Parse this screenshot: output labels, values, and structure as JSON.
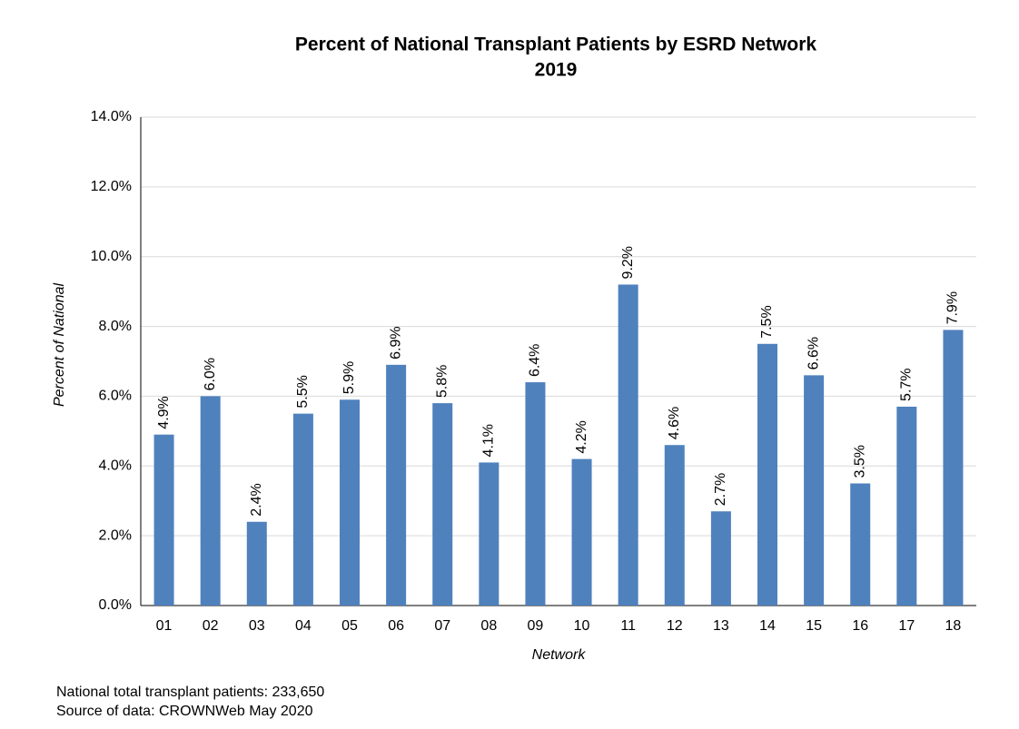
{
  "chart_data": {
    "type": "bar",
    "title": "Percent of National Transplant Patients by ESRD Network",
    "subtitle": "2019",
    "x_label": "Network",
    "y_label": "Percent of National",
    "categories": [
      "01",
      "02",
      "03",
      "04",
      "05",
      "06",
      "07",
      "08",
      "09",
      "10",
      "11",
      "12",
      "13",
      "14",
      "15",
      "16",
      "17",
      "18"
    ],
    "values": [
      4.9,
      6.0,
      2.4,
      5.5,
      5.9,
      6.9,
      5.8,
      4.1,
      6.4,
      4.2,
      9.2,
      4.6,
      2.7,
      7.5,
      6.6,
      3.5,
      5.7,
      7.9
    ],
    "value_labels": [
      "4.9%",
      "6.0%",
      "2.4%",
      "5.5%",
      "5.9%",
      "6.9%",
      "5.8%",
      "4.1%",
      "6.4%",
      "4.2%",
      "9.2%",
      "4.6%",
      "2.7%",
      "7.5%",
      "6.6%",
      "3.5%",
      "5.7%",
      "7.9%"
    ],
    "color": "#4f81bd",
    "ylim": [
      0,
      14
    ],
    "yticks": [
      {
        "value": 0,
        "label": "0.0%"
      },
      {
        "value": 2,
        "label": "2.0%"
      },
      {
        "value": 4,
        "label": "4.0%"
      },
      {
        "value": 6,
        "label": "6.0%"
      },
      {
        "value": 8,
        "label": "8.0%"
      },
      {
        "value": 10,
        "label": "10.0%"
      },
      {
        "value": 12,
        "label": "12.0%"
      },
      {
        "value": 14,
        "label": "14.0%"
      }
    ],
    "grid": true,
    "notes": [
      "National total transplant patients: 233,650",
      "Source of data:  CROWNWeb May 2020"
    ]
  }
}
